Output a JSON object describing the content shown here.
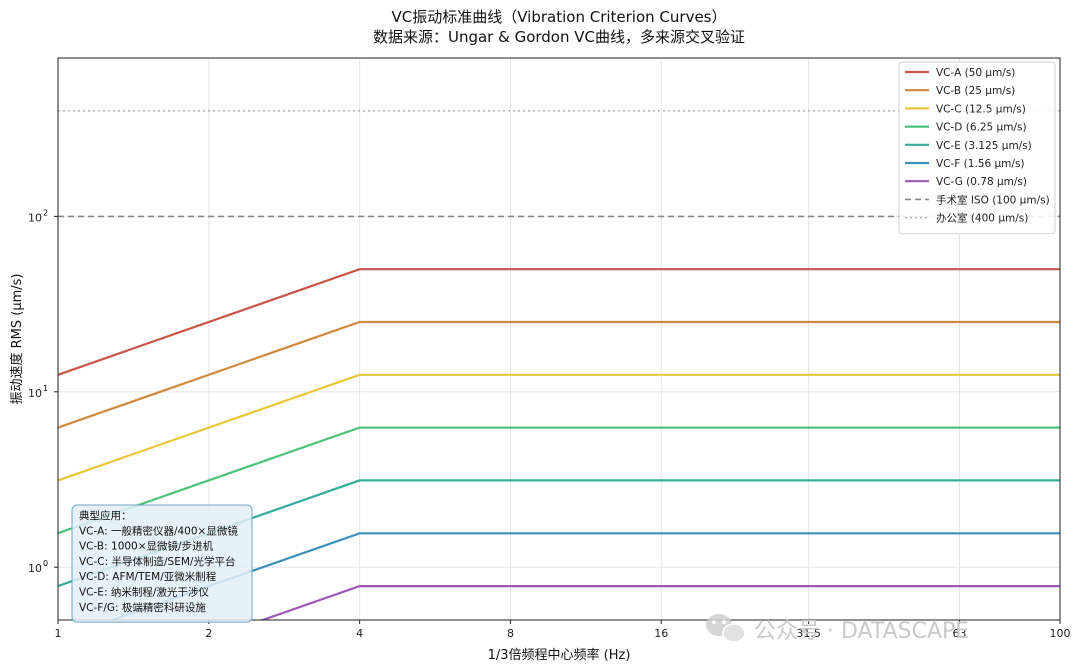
{
  "chart_data": {
    "type": "line",
    "title": "VC振动标准曲线（Vibration Criterion Curves）",
    "subtitle": "数据来源：Ungar & Gordon VC曲线，多来源交叉验证",
    "xlabel": "1/3倍频程中心频率 (Hz)",
    "ylabel": "振动速度 RMS (μm/s)",
    "x_scale": "log",
    "y_scale": "log",
    "xlim": [
      1,
      100
    ],
    "ylim": [
      0.5,
      800
    ],
    "x_ticks": [
      {
        "value": 1,
        "label": "1"
      },
      {
        "value": 2,
        "label": "2"
      },
      {
        "value": 4,
        "label": "4"
      },
      {
        "value": 8,
        "label": "8"
      },
      {
        "value": 16,
        "label": "16"
      },
      {
        "value": 31.5,
        "label": "31.5"
      },
      {
        "value": 63,
        "label": "63"
      },
      {
        "value": 100,
        "label": "100"
      }
    ],
    "y_ticks": [
      {
        "value": 1,
        "base": "10",
        "exp": "0"
      },
      {
        "value": 10,
        "base": "10",
        "exp": "1"
      },
      {
        "value": 100,
        "base": "10",
        "exp": "2"
      }
    ],
    "grid": true,
    "legend_position": "top-right",
    "series": [
      {
        "name": "VC-A (50 μm/s)",
        "color": "#c9544a",
        "dash": "solid",
        "x": [
          1,
          4,
          100
        ],
        "y": [
          12.5,
          50,
          50
        ]
      },
      {
        "name": "VC-B (25 μm/s)",
        "color": "#d0883c",
        "dash": "solid",
        "x": [
          1,
          4,
          100
        ],
        "y": [
          6.25,
          25,
          25
        ]
      },
      {
        "name": "VC-C (12.5 μm/s)",
        "color": "#e8c63a",
        "dash": "solid",
        "x": [
          1,
          4,
          100
        ],
        "y": [
          3.125,
          12.5,
          12.5
        ]
      },
      {
        "name": "VC-D (6.25 μm/s)",
        "color": "#4cc27a",
        "dash": "solid",
        "x": [
          1,
          4,
          100
        ],
        "y": [
          1.5625,
          6.25,
          6.25
        ]
      },
      {
        "name": "VC-E (3.125 μm/s)",
        "color": "#35ad98",
        "dash": "solid",
        "x": [
          1,
          4,
          100
        ],
        "y": [
          0.78,
          3.125,
          3.125
        ]
      },
      {
        "name": "VC-F (1.56 μm/s)",
        "color": "#3c8fba",
        "dash": "solid",
        "x": [
          1,
          4,
          100
        ],
        "y": [
          0.39,
          1.56,
          1.56
        ]
      },
      {
        "name": "VC-G (0.78 μm/s)",
        "color": "#9b59b6",
        "dash": "solid",
        "x": [
          1,
          4,
          100
        ],
        "y": [
          0.195,
          0.78,
          0.78
        ]
      },
      {
        "name": "手术室 ISO (100 μm/s)",
        "color": "#888888",
        "dash": "dashed",
        "x": [
          1,
          100
        ],
        "y": [
          100,
          100
        ]
      },
      {
        "name": "办公室 (400 μm/s)",
        "color": "#b5b5b5",
        "dash": "dotted",
        "x": [
          1,
          100
        ],
        "y": [
          400,
          400
        ]
      }
    ],
    "annotation": {
      "lines": [
        "典型应用：",
        "VC-A: 一般精密仪器/400×显微镜",
        "VC-B: 1000×显微镜/步进机",
        "VC-C: 半导体制造/SEM/光学平台",
        "VC-D: AFM/TEM/亚微米制程",
        "VC-E: 纳米制程/激光干涉仪",
        "VC-F/G: 极端精密科研设施"
      ],
      "box_fill": "#e3eff7",
      "box_stroke": "#6fa8c8"
    }
  },
  "watermark": {
    "icon": "wechat-icon",
    "text": "公众号 · DATASCAPE"
  }
}
